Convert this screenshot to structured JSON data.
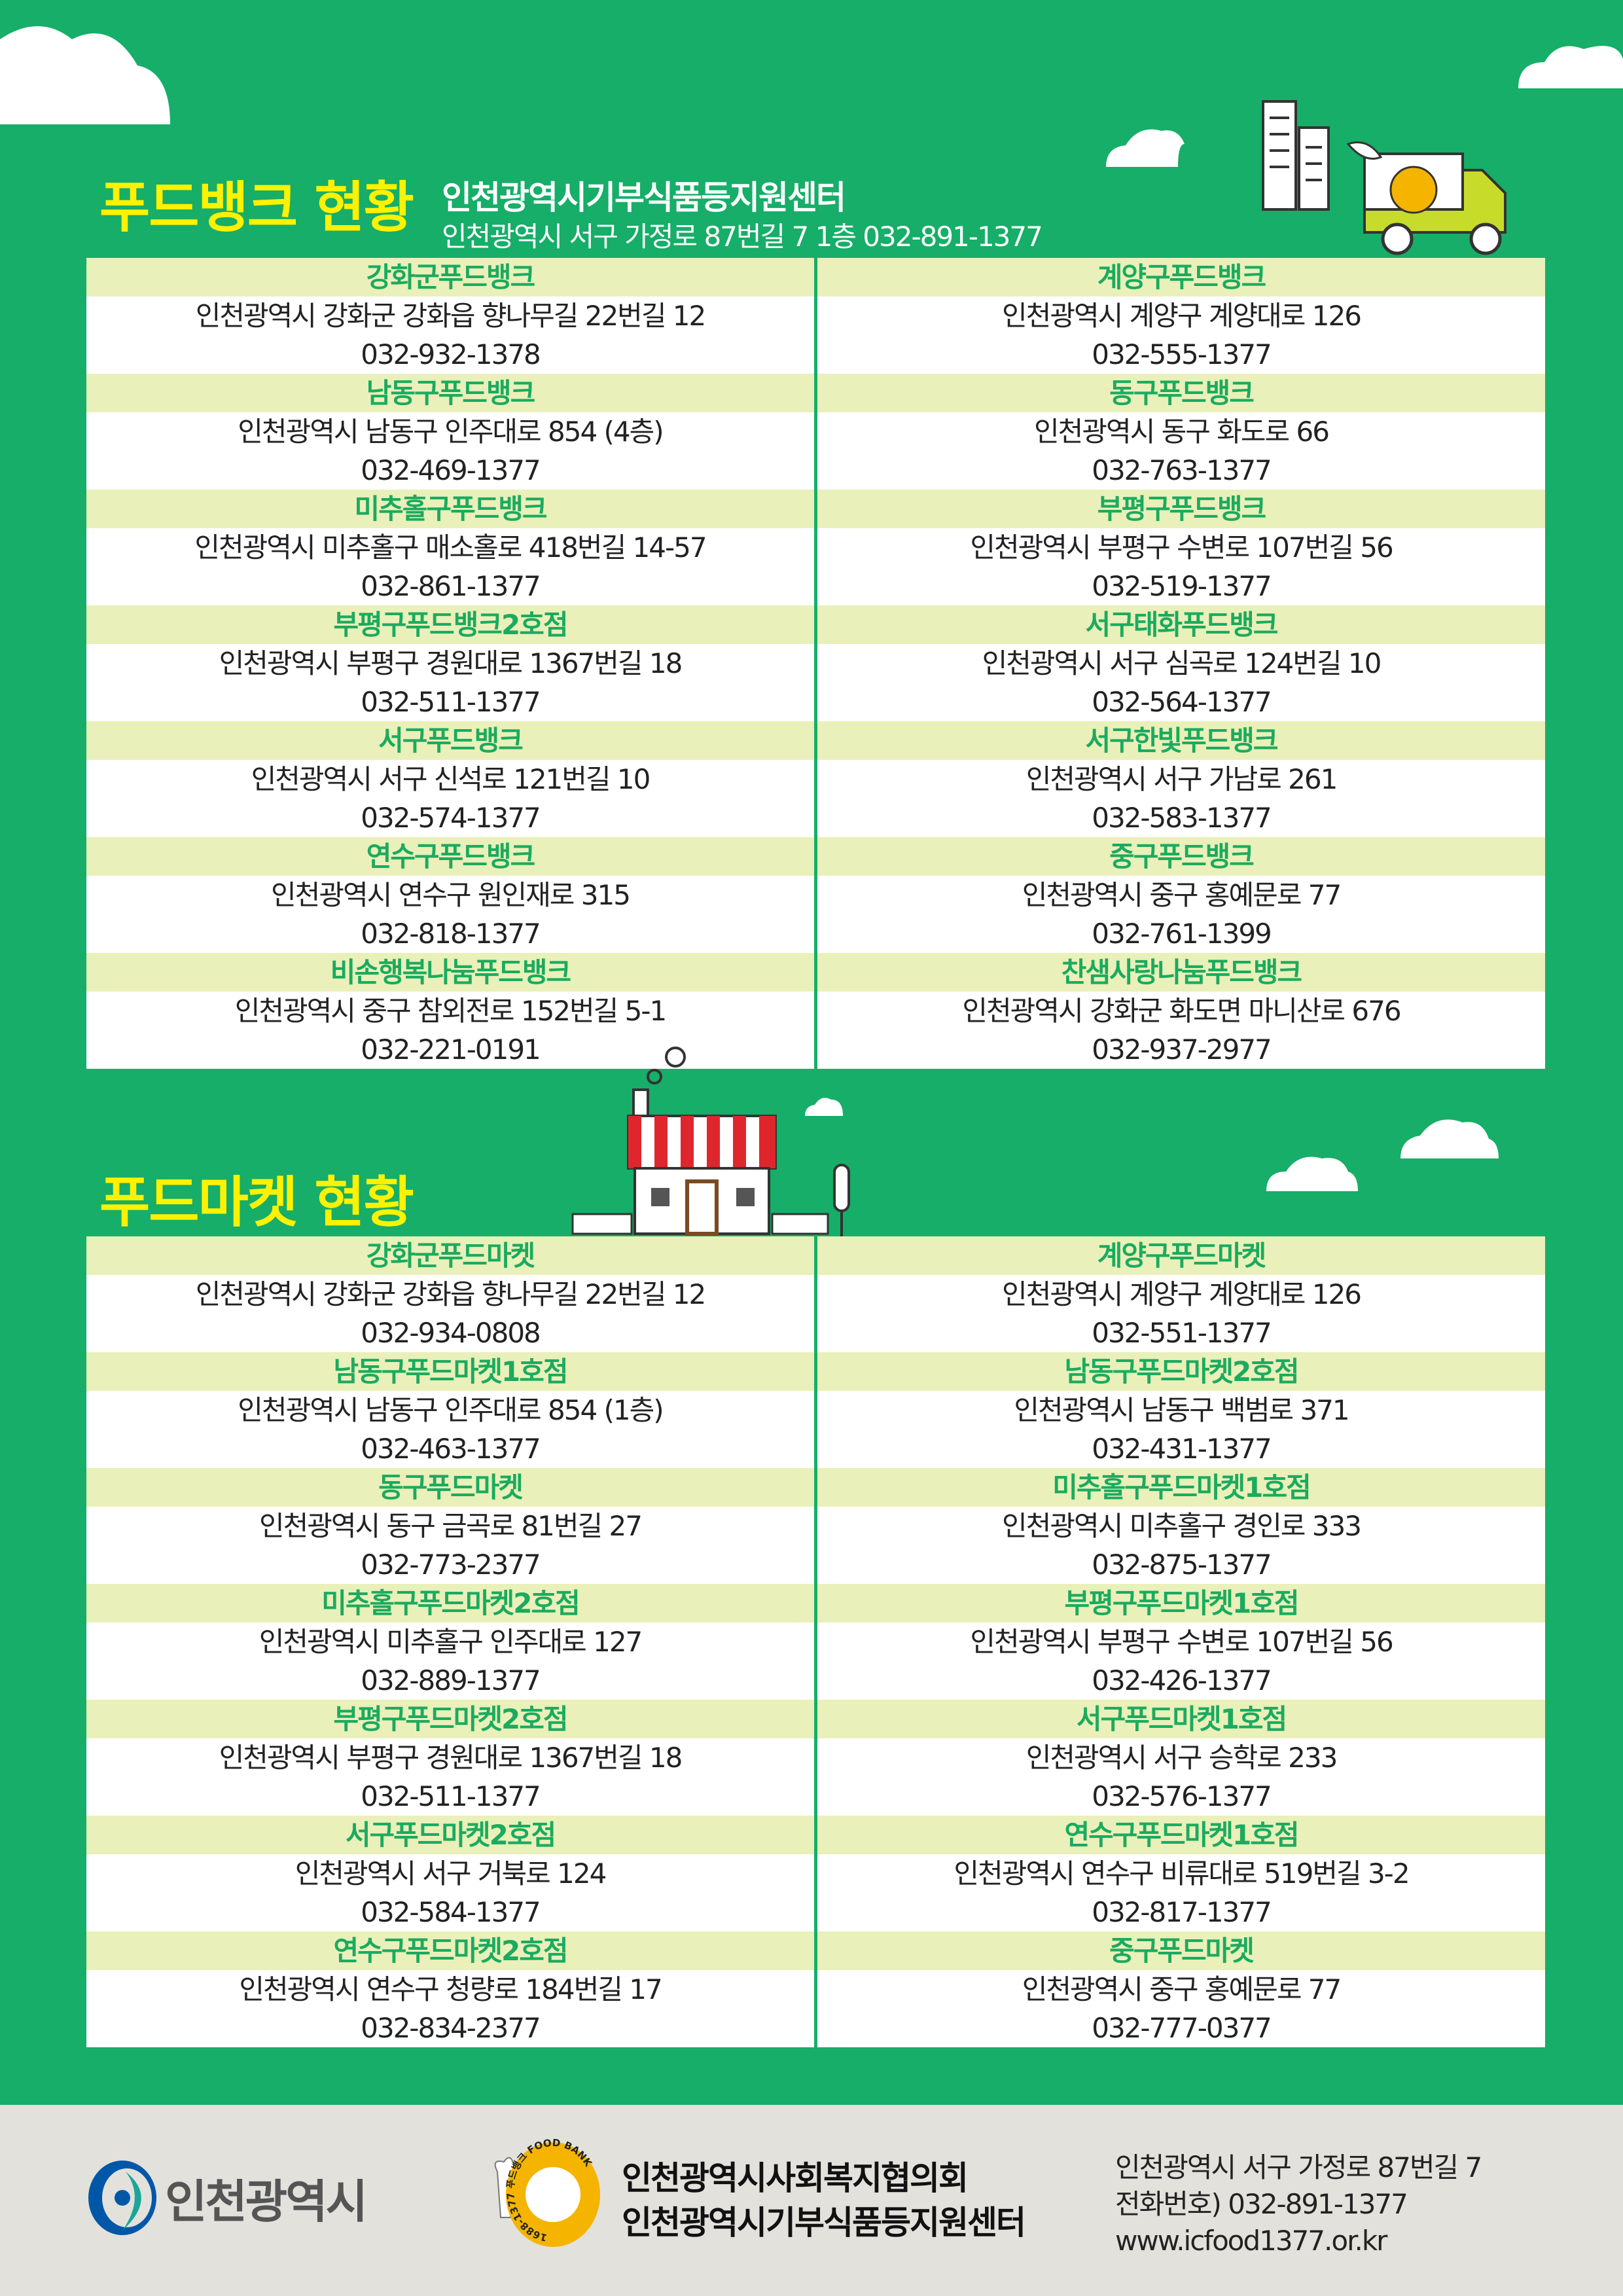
{
  "colors": {
    "background": "#16ae68",
    "title": "#fff200",
    "header_row": "#eaf0b9",
    "header_text": "#1aab5f",
    "footer": "#e2e1dc"
  },
  "foodbank": {
    "title": "푸드뱅크 현황",
    "center_name": "인천광역시기부식품등지원센터",
    "center_address": "인천광역시 서구 가정로 87번길 7 1층  032-891-1377",
    "left": [
      {
        "name": "강화군푸드뱅크",
        "address": "인천광역시 강화군 강화읍 향나무길 22번길 12",
        "phone": "032-932-1378"
      },
      {
        "name": "남동구푸드뱅크",
        "address": "인천광역시 남동구 인주대로 854 (4층)",
        "phone": "032-469-1377"
      },
      {
        "name": "미추홀구푸드뱅크",
        "address": "인천광역시 미추홀구 매소홀로 418번길 14-57",
        "phone": "032-861-1377"
      },
      {
        "name": "부평구푸드뱅크2호점",
        "address": "인천광역시 부평구 경원대로 1367번길 18",
        "phone": "032-511-1377"
      },
      {
        "name": "서구푸드뱅크",
        "address": "인천광역시 서구 신석로 121번길 10",
        "phone": "032-574-1377"
      },
      {
        "name": "연수구푸드뱅크",
        "address": "인천광역시 연수구 원인재로 315",
        "phone": "032-818-1377"
      },
      {
        "name": "비손행복나눔푸드뱅크",
        "address": "인천광역시 중구 참외전로 152번길 5-1",
        "phone": "032-221-0191"
      }
    ],
    "right": [
      {
        "name": "계양구푸드뱅크",
        "address": "인천광역시 계양구 계양대로 126",
        "phone": "032-555-1377"
      },
      {
        "name": "동구푸드뱅크",
        "address": "인천광역시 동구 화도로 66",
        "phone": "032-763-1377"
      },
      {
        "name": "부평구푸드뱅크",
        "address": "인천광역시 부평구 수변로 107번길 56",
        "phone": "032-519-1377"
      },
      {
        "name": "서구태화푸드뱅크",
        "address": "인천광역시 서구 심곡로 124번길 10",
        "phone": "032-564-1377"
      },
      {
        "name": "서구한빛푸드뱅크",
        "address": "인천광역시 서구 가남로 261",
        "phone": "032-583-1377"
      },
      {
        "name": "중구푸드뱅크",
        "address": "인천광역시 중구 홍예문로 77",
        "phone": "032-761-1399"
      },
      {
        "name": "찬샘사랑나눔푸드뱅크",
        "address": "인천광역시 강화군 화도면 마니산로 676",
        "phone": "032-937-2977"
      }
    ]
  },
  "foodmarket": {
    "title": "푸드마켓 현황",
    "left": [
      {
        "name": "강화군푸드마켓",
        "address": "인천광역시 강화군 강화읍 향나무길 22번길 12",
        "phone": "032-934-0808"
      },
      {
        "name": "남동구푸드마켓1호점",
        "address": "인천광역시 남동구 인주대로 854 (1층)",
        "phone": "032-463-1377"
      },
      {
        "name": "동구푸드마켓",
        "address": "인천광역시 동구 금곡로 81번길 27",
        "phone": "032-773-2377"
      },
      {
        "name": "미추홀구푸드마켓2호점",
        "address": "인천광역시 미추홀구 인주대로 127",
        "phone": "032-889-1377"
      },
      {
        "name": "부평구푸드마켓2호점",
        "address": "인천광역시 부평구 경원대로 1367번길 18",
        "phone": "032-511-1377"
      },
      {
        "name": "서구푸드마켓2호점",
        "address": "인천광역시 서구 거북로 124",
        "phone": "032-584-1377"
      },
      {
        "name": "연수구푸드마켓2호점",
        "address": "인천광역시 연수구 청량로 184번길 17",
        "phone": "032-834-2377"
      }
    ],
    "right": [
      {
        "name": "계양구푸드마켓",
        "address": "인천광역시 계양구 계양대로 126",
        "phone": "032-551-1377"
      },
      {
        "name": "남동구푸드마켓2호점",
        "address": "인천광역시 남동구 백범로 371",
        "phone": "032-431-1377"
      },
      {
        "name": "미추홀구푸드마켓1호점",
        "address": "인천광역시 미추홀구 경인로 333",
        "phone": "032-875-1377"
      },
      {
        "name": "부평구푸드마켓1호점",
        "address": "인천광역시 부평구 수변로 107번길 56",
        "phone": "032-426-1377"
      },
      {
        "name": "서구푸드마켓1호점",
        "address": "인천광역시 서구 승학로 233",
        "phone": "032-576-1377"
      },
      {
        "name": "연수구푸드마켓1호점",
        "address": "인천광역시 연수구 비류대로 519번길 3-2",
        "phone": "032-817-1377"
      },
      {
        "name": "중구푸드마켓",
        "address": "인천광역시 중구 홍예문로 77",
        "phone": "032-777-0377"
      }
    ]
  },
  "footer": {
    "city_logo_text": "인천광역시",
    "foodbank_logo_text": "1688-1377 푸드뱅크 FOOD BANK",
    "org1": "인천광역시사회복지협의회",
    "org2": "인천광역시기부식품등지원센터",
    "address": "인천광역시 서구 가정로 87번길 7",
    "phone": "전화번호) 032-891-1377",
    "website": "www.icfood1377.or.kr"
  }
}
